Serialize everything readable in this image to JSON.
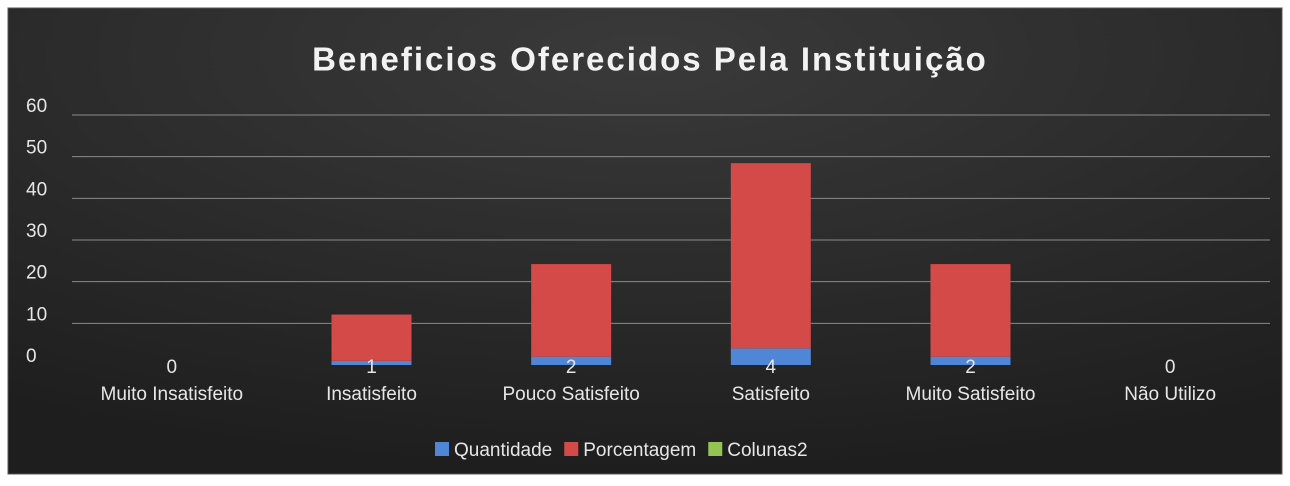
{
  "chart_data": {
    "type": "stacked_bar",
    "title": "Beneficios Oferecidos Pela Instituição",
    "categories": [
      "Muito Insatisfeito",
      "Insatisfeito",
      "Pouco Satisfeito",
      "Satisfeito",
      "Muito Satisfeito",
      "Não Utilizo"
    ],
    "series": [
      {
        "name": "Quantidade",
        "color": "#4f86d6",
        "values": [
          0,
          1,
          2,
          4,
          2,
          0
        ]
      },
      {
        "name": "Porcentagem",
        "color": "#d44a48",
        "values": [
          0,
          11.11,
          22.22,
          44.44,
          22.22,
          0
        ]
      },
      {
        "name": "Colunas2",
        "color": "#92c353",
        "values": [
          null,
          null,
          null,
          null,
          null,
          null
        ]
      }
    ],
    "ylim": [
      0,
      60
    ],
    "yticks": [
      0,
      10,
      20,
      30,
      40,
      50,
      60
    ],
    "grid": true,
    "legend": "bottom"
  }
}
